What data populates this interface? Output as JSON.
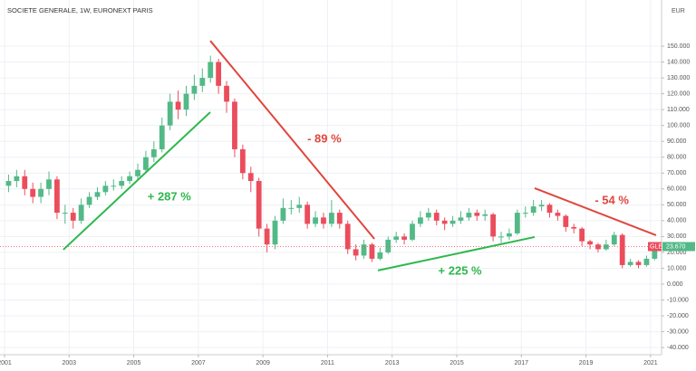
{
  "chart_data": {
    "type": "candlestick",
    "title": "SOCIETE GENERALE, 1W, EURONEXT PARIS",
    "y_unit": "EUR",
    "symbol": "GLE",
    "price_label": {
      "value": 23.67,
      "label": "23.670"
    },
    "up_color": "#53b987",
    "down_color": "#eb4d5c",
    "grid": true,
    "xlim": [
      2000.86,
      2021.34
    ],
    "ylim": [
      -44.5,
      179.1
    ],
    "xticks": [
      2001,
      2003,
      2005,
      2007,
      2009,
      2011,
      2013,
      2015,
      2017,
      2019,
      2021
    ],
    "yticks": [
      {
        "value": -40,
        "label": "-40.000"
      },
      {
        "value": -30,
        "label": "-30.000"
      },
      {
        "value": -20,
        "label": "-20.000"
      },
      {
        "value": -10,
        "label": "-10.000"
      },
      {
        "value": 0,
        "label": "0.000"
      },
      {
        "value": 10,
        "label": "10.000"
      },
      {
        "value": 20,
        "label": "20.000"
      },
      {
        "value": 30,
        "label": "30.000"
      },
      {
        "value": 40,
        "label": "40.000"
      },
      {
        "value": 50,
        "label": "50.000"
      },
      {
        "value": 60,
        "label": "60.000"
      },
      {
        "value": 70,
        "label": "70.000"
      },
      {
        "value": 80,
        "label": "80.000"
      },
      {
        "value": 90,
        "label": "90.000"
      },
      {
        "value": 100,
        "label": "100.000"
      },
      {
        "value": 110,
        "label": "110.000"
      },
      {
        "value": 120,
        "label": "120.000"
      },
      {
        "value": 130,
        "label": "130.000"
      },
      {
        "value": 140,
        "label": "140.000"
      },
      {
        "value": 150,
        "label": "150.000"
      }
    ],
    "x": [
      2001.125,
      2001.375,
      2001.625,
      2001.875,
      2002.125,
      2002.375,
      2002.625,
      2002.875,
      2003.125,
      2003.375,
      2003.625,
      2003.875,
      2004.125,
      2004.375,
      2004.625,
      2004.875,
      2005.125,
      2005.375,
      2005.625,
      2005.875,
      2006.125,
      2006.375,
      2006.625,
      2006.875,
      2007.125,
      2007.375,
      2007.625,
      2007.875,
      2008.125,
      2008.375,
      2008.625,
      2008.875,
      2009.125,
      2009.375,
      2009.625,
      2009.875,
      2010.125,
      2010.375,
      2010.625,
      2010.875,
      2011.125,
      2011.375,
      2011.625,
      2011.875,
      2012.125,
      2012.375,
      2012.625,
      2012.875,
      2013.125,
      2013.375,
      2013.625,
      2013.875,
      2014.125,
      2014.375,
      2014.625,
      2014.875,
      2015.125,
      2015.375,
      2015.625,
      2015.875,
      2016.125,
      2016.375,
      2016.625,
      2016.875,
      2017.125,
      2017.375,
      2017.625,
      2017.875,
      2018.125,
      2018.375,
      2018.625,
      2018.875,
      2019.125,
      2019.375,
      2019.625,
      2019.875,
      2020.125,
      2020.375,
      2020.625,
      2020.875,
      2021.125
    ],
    "open": [
      62,
      65,
      68,
      60,
      55,
      60,
      66,
      45,
      45,
      40,
      50,
      55,
      58,
      62,
      62,
      65,
      68,
      72,
      80,
      85,
      100,
      115,
      110,
      120,
      125,
      130,
      140,
      125,
      115,
      85,
      70,
      65,
      35,
      25,
      40,
      48,
      48,
      50,
      38,
      42,
      38,
      45,
      38,
      22,
      18,
      25,
      16,
      20,
      28,
      30,
      28,
      38,
      42,
      45,
      40,
      38,
      40,
      42,
      45,
      43,
      44,
      30,
      30,
      32,
      45,
      45,
      49,
      50,
      45,
      43,
      36,
      35,
      27,
      25,
      22,
      25,
      31,
      12,
      14,
      12,
      16
    ],
    "high": [
      69,
      72,
      72,
      64,
      64,
      71,
      68,
      50,
      48,
      54,
      58,
      61,
      65,
      66,
      68,
      71,
      76,
      84,
      90,
      105,
      120,
      122,
      125,
      132,
      136,
      144,
      142,
      128,
      117,
      88,
      74,
      67,
      38,
      43,
      54,
      53,
      55,
      52,
      46,
      45,
      53,
      47,
      40,
      25,
      28,
      26,
      23,
      30,
      33,
      32,
      40,
      46,
      48,
      47,
      42,
      43,
      46,
      48,
      47,
      47,
      45,
      33,
      35,
      47,
      49,
      53,
      53,
      51,
      47,
      44,
      38,
      36,
      28,
      26,
      28,
      33,
      32,
      16,
      15,
      18,
      24
    ],
    "low": [
      58,
      61,
      56,
      51,
      51,
      56,
      41,
      38,
      35,
      38,
      48,
      53,
      56,
      59,
      60,
      63,
      66,
      70,
      77,
      83,
      97,
      104,
      106,
      116,
      121,
      127,
      120,
      108,
      80,
      66,
      58,
      30,
      20,
      22,
      38,
      44,
      45,
      35,
      36,
      35,
      36,
      35,
      19,
      15,
      16,
      14,
      15,
      19,
      26,
      25,
      27,
      36,
      40,
      37,
      34,
      36,
      38,
      40,
      40,
      40,
      27,
      26,
      28,
      31,
      42,
      43,
      46,
      42,
      40,
      33,
      32,
      24,
      22,
      20,
      21,
      24,
      10,
      11,
      10,
      11,
      15
    ],
    "close": [
      65,
      68,
      60,
      55,
      60,
      66,
      45,
      45,
      40,
      50,
      55,
      58,
      62,
      62,
      65,
      68,
      72,
      80,
      85,
      100,
      115,
      110,
      120,
      125,
      130,
      140,
      125,
      115,
      85,
      70,
      65,
      35,
      25,
      40,
      48,
      48,
      50,
      38,
      42,
      38,
      45,
      38,
      22,
      18,
      25,
      16,
      20,
      28,
      30,
      28,
      38,
      42,
      45,
      40,
      38,
      40,
      42,
      45,
      43,
      44,
      30,
      30,
      32,
      45,
      45,
      49,
      50,
      45,
      43,
      36,
      35,
      27,
      25,
      22,
      25,
      31,
      12,
      14,
      12,
      16,
      23.67
    ],
    "trend_lines": [
      {
        "color": "#2db84d",
        "x": [
          2002.82,
          2007.37
        ],
        "y": [
          21.7,
          108.4
        ]
      },
      {
        "color": "#e0463c",
        "x": [
          2007.37,
          2012.45
        ],
        "y": [
          153.4,
          28.5
        ]
      },
      {
        "color": "#2db84d",
        "x": [
          2012.56,
          2017.41
        ],
        "y": [
          8.6,
          29.7
        ]
      },
      {
        "color": "#e0463c",
        "x": [
          2017.41,
          2021.17
        ],
        "y": [
          60.5,
          30.8
        ]
      }
    ],
    "annotations": [
      {
        "text": "+ 287 %",
        "color": "#2db84d",
        "x": 2006.1,
        "y": 54.8
      },
      {
        "text": "- 89 %",
        "color": "#e0463c",
        "x": 2010.9,
        "y": 91.3
      },
      {
        "text": "+ 225 %",
        "color": "#2db84d",
        "x": 2015.1,
        "y": 8.0
      },
      {
        "text": "- 54 %",
        "color": "#e0463c",
        "x": 2019.8,
        "y": 52.5
      }
    ]
  }
}
